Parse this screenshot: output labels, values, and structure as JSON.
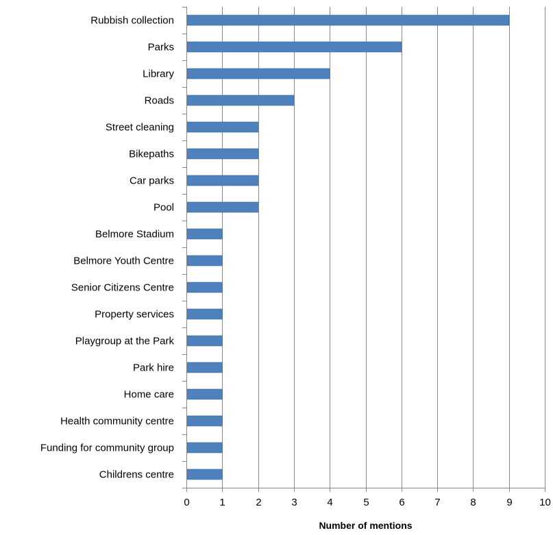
{
  "chart_data": {
    "type": "bar",
    "orientation": "horizontal",
    "title": "",
    "xlabel": "Number of mentions",
    "ylabel": "",
    "xlim": [
      0,
      10
    ],
    "x_ticks": [
      "0",
      "1",
      "2",
      "3",
      "4",
      "5",
      "6",
      "7",
      "8",
      "9",
      "10"
    ],
    "grid": "vertical",
    "legend": "none",
    "categories": [
      "Rubbish collection",
      "Parks",
      "Library",
      "Roads",
      "Street cleaning",
      "Bikepaths",
      "Car parks",
      "Pool",
      "Belmore Stadium",
      "Belmore Youth Centre",
      "Senior Citizens Centre",
      "Property services",
      "Playgroup at the Park",
      "Park hire",
      "Home care",
      "Health community centre",
      "Funding for community group",
      "Childrens centre"
    ],
    "values": [
      9,
      6,
      4,
      3,
      2,
      2,
      2,
      2,
      1,
      1,
      1,
      1,
      1,
      1,
      1,
      1,
      1,
      1
    ],
    "colors": {
      "bar": "#4F81BD",
      "bar_border": "#3A6A9F",
      "grid": "#868686",
      "axis": "#868686"
    }
  }
}
